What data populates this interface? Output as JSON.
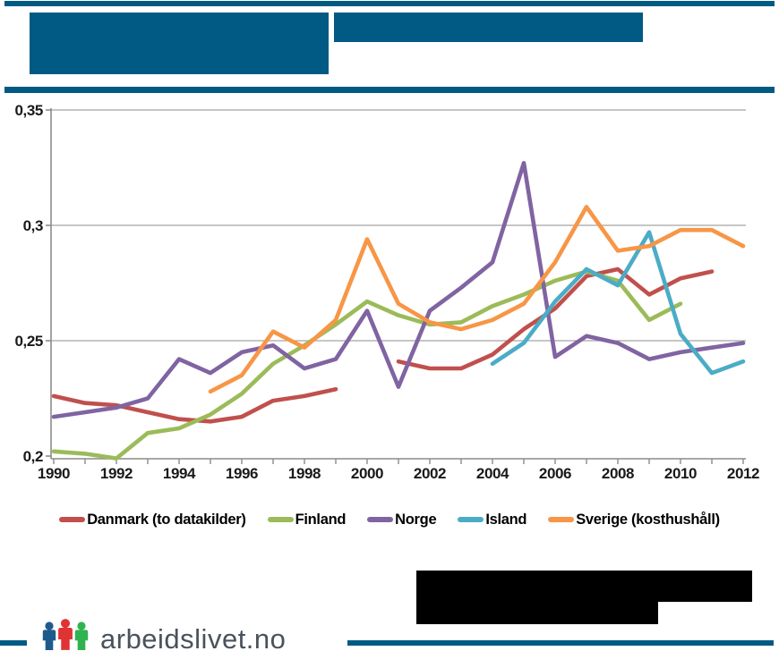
{
  "page": {
    "colors": {
      "accent_blue": "#015A83",
      "redaction_black": "#000000",
      "grid_gray": "#A3A3A3",
      "axis_gray": "#8C8C8C",
      "brand_text": "#49525C"
    }
  },
  "chart_data": {
    "type": "line",
    "title": "",
    "xlabel": "",
    "ylabel": "",
    "xlim": [
      1990,
      2012
    ],
    "ylim": [
      0.2,
      0.35
    ],
    "grid": true,
    "legend_position": "bottom",
    "y_ticks": [
      {
        "value": 0.35,
        "label": "0,35"
      },
      {
        "value": 0.3,
        "label": "0,3"
      },
      {
        "value": 0.25,
        "label": "0,25"
      },
      {
        "value": 0.2,
        "label": "0,2"
      }
    ],
    "x_ticks": [
      {
        "year": 1990,
        "label": "1990"
      },
      {
        "year": 1992,
        "label": "1992"
      },
      {
        "year": 1994,
        "label": "1994"
      },
      {
        "year": 1996,
        "label": "1996"
      },
      {
        "year": 1998,
        "label": "1998"
      },
      {
        "year": 2000,
        "label": "2000"
      },
      {
        "year": 2002,
        "label": "2002"
      },
      {
        "year": 2004,
        "label": "2004"
      },
      {
        "year": 2006,
        "label": "2006"
      },
      {
        "year": 2008,
        "label": "2008"
      },
      {
        "year": 2010,
        "label": "2010"
      },
      {
        "year": 2012,
        "label": "2012"
      }
    ],
    "series": [
      {
        "name": "Danmark (to datakilder)",
        "color": "#C0504D",
        "segments": [
          {
            "start_year": 1990,
            "values": [
              0.226,
              0.223,
              0.222,
              0.219,
              0.216,
              0.215,
              0.217,
              0.224,
              0.226,
              0.229
            ]
          },
          {
            "start_year": 2001,
            "values": [
              0.241,
              0.238,
              0.238,
              0.244,
              0.255,
              0.264,
              0.278,
              0.281,
              0.27,
              0.277,
              0.28
            ]
          }
        ]
      },
      {
        "name": "Finland",
        "color": "#9BBB59",
        "segments": [
          {
            "start_year": 1990,
            "values": [
              0.202,
              0.201,
              0.199,
              0.21,
              0.212,
              0.218,
              0.227,
              0.24,
              0.248,
              0.257,
              0.267,
              0.261,
              0.257,
              0.258,
              0.265,
              0.27,
              0.276,
              0.28,
              0.276,
              0.259,
              0.266
            ]
          }
        ]
      },
      {
        "name": "Norge",
        "color": "#8064A2",
        "segments": [
          {
            "start_year": 1990,
            "values": [
              0.217,
              0.219,
              0.221,
              0.225,
              0.242,
              0.236,
              0.245,
              0.248,
              0.238,
              0.242,
              0.263,
              0.23,
              0.263,
              0.273,
              0.284,
              0.327,
              0.243,
              0.252,
              0.249,
              0.242,
              0.245,
              0.247,
              0.249
            ]
          }
        ]
      },
      {
        "name": "Island",
        "color": "#4BACC6",
        "segments": [
          {
            "start_year": 2004,
            "values": [
              0.24,
              0.249,
              0.267,
              0.281,
              0.274,
              0.297,
              0.253,
              0.236,
              0.241
            ]
          }
        ]
      },
      {
        "name": "Sverige (kosthushåll)",
        "color": "#F79646",
        "segments": [
          {
            "start_year": 1995,
            "values": [
              0.228,
              0.235,
              0.254,
              0.247,
              0.259,
              0.294,
              0.266,
              0.258,
              0.255,
              0.259,
              0.266,
              0.284,
              0.308,
              0.289,
              0.291,
              0.298,
              0.298,
              0.291
            ]
          }
        ]
      }
    ]
  },
  "footer": {
    "brand": "arbeidslivet.no",
    "logo_person_colors": [
      "#1D5B8C",
      "#E03434",
      "#2FB351"
    ]
  }
}
